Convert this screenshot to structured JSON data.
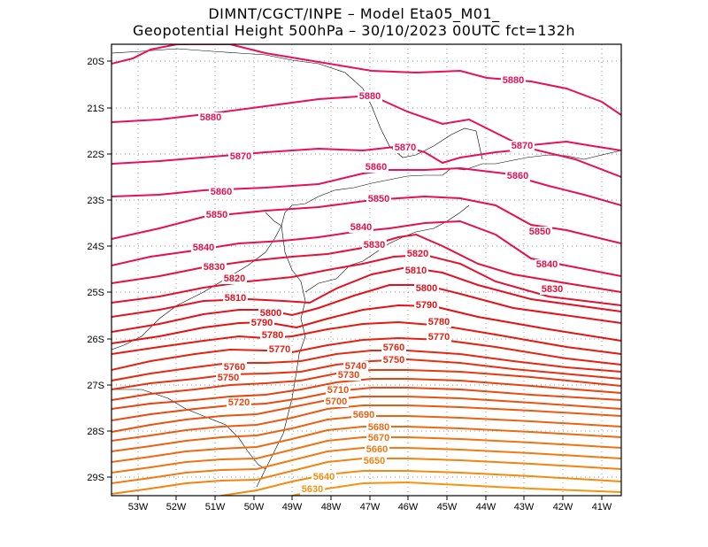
{
  "header": {
    "line1": "DIMNT/CGCT/INPE –  Model Eta05_M01_",
    "line2": "Geopotential Height 500hPa –  30/10/2023 00UTC fct=132h"
  },
  "axes": {
    "lon_labels": [
      "53W",
      "52W",
      "51W",
      "50W",
      "49W",
      "48W",
      "47W",
      "46W",
      "45W",
      "44W",
      "43W",
      "42W",
      "41W"
    ],
    "lat_labels": [
      "20S",
      "21S",
      "22S",
      "23S",
      "24S",
      "25S",
      "26S",
      "27S",
      "28S",
      "29S"
    ],
    "lon_range": [
      -53.6,
      -40.6
    ],
    "lat_range": [
      -19.6,
      -29.4
    ]
  },
  "contours": {
    "levels": [
      5880,
      5870,
      5860,
      5850,
      5840,
      5830,
      5820,
      5810,
      5800,
      5790,
      5780,
      5770,
      5760,
      5750,
      5740,
      5730,
      5720,
      5710,
      5700,
      5690,
      5680,
      5670,
      5660,
      5650,
      5640,
      5630
    ],
    "labels": [
      {
        "text": "5880",
        "color": "#e8105a"
      },
      {
        "text": "5880",
        "color": "#e8105a"
      },
      {
        "text": "5880",
        "color": "#e8105a"
      },
      {
        "text": "5870",
        "color": "#e8105a"
      },
      {
        "text": "5870",
        "color": "#e8105a"
      },
      {
        "text": "5870",
        "color": "#e8105a"
      },
      {
        "text": "5860",
        "color": "#e8105a"
      },
      {
        "text": "5860",
        "color": "#e8105a"
      },
      {
        "text": "5860",
        "color": "#e8105a"
      },
      {
        "text": "5850",
        "color": "#e8104a"
      },
      {
        "text": "5850",
        "color": "#e8104a"
      },
      {
        "text": "5850",
        "color": "#e8104a"
      },
      {
        "text": "5840",
        "color": "#e8104a"
      },
      {
        "text": "5840",
        "color": "#e8104a"
      },
      {
        "text": "5840",
        "color": "#e8104a"
      },
      {
        "text": "5830",
        "color": "#e6103a"
      },
      {
        "text": "5830",
        "color": "#e6103a"
      },
      {
        "text": "5830",
        "color": "#e6103a"
      },
      {
        "text": "5820",
        "color": "#e6102e"
      },
      {
        "text": "5820",
        "color": "#e6102e"
      },
      {
        "text": "5810",
        "color": "#e61024"
      },
      {
        "text": "5810",
        "color": "#e61024"
      },
      {
        "text": "5800",
        "color": "#e6101a"
      },
      {
        "text": "5800",
        "color": "#e6101a"
      },
      {
        "text": "5790",
        "color": "#e61010"
      },
      {
        "text": "5790",
        "color": "#e61010"
      },
      {
        "text": "5780",
        "color": "#e61810"
      },
      {
        "text": "5780",
        "color": "#e61810"
      },
      {
        "text": "5770",
        "color": "#e62010"
      },
      {
        "text": "5770",
        "color": "#e62010"
      },
      {
        "text": "5760",
        "color": "#e62810"
      },
      {
        "text": "5760",
        "color": "#e62810"
      },
      {
        "text": "5750",
        "color": "#e63010"
      },
      {
        "text": "5750",
        "color": "#e63010"
      },
      {
        "text": "5740",
        "color": "#e83a10"
      },
      {
        "text": "5730",
        "color": "#e84210"
      },
      {
        "text": "5720",
        "color": "#e84a10"
      },
      {
        "text": "5710",
        "color": "#ea5210"
      },
      {
        "text": "5700",
        "color": "#ea5a10"
      },
      {
        "text": "5690",
        "color": "#ec6210"
      },
      {
        "text": "5680",
        "color": "#ee6a10"
      },
      {
        "text": "5670",
        "color": "#f07210"
      },
      {
        "text": "5660",
        "color": "#f27a10"
      },
      {
        "text": "5650",
        "color": "#f48210"
      },
      {
        "text": "5640",
        "color": "#f68a10"
      },
      {
        "text": "5630",
        "color": "#f89210"
      }
    ]
  }
}
